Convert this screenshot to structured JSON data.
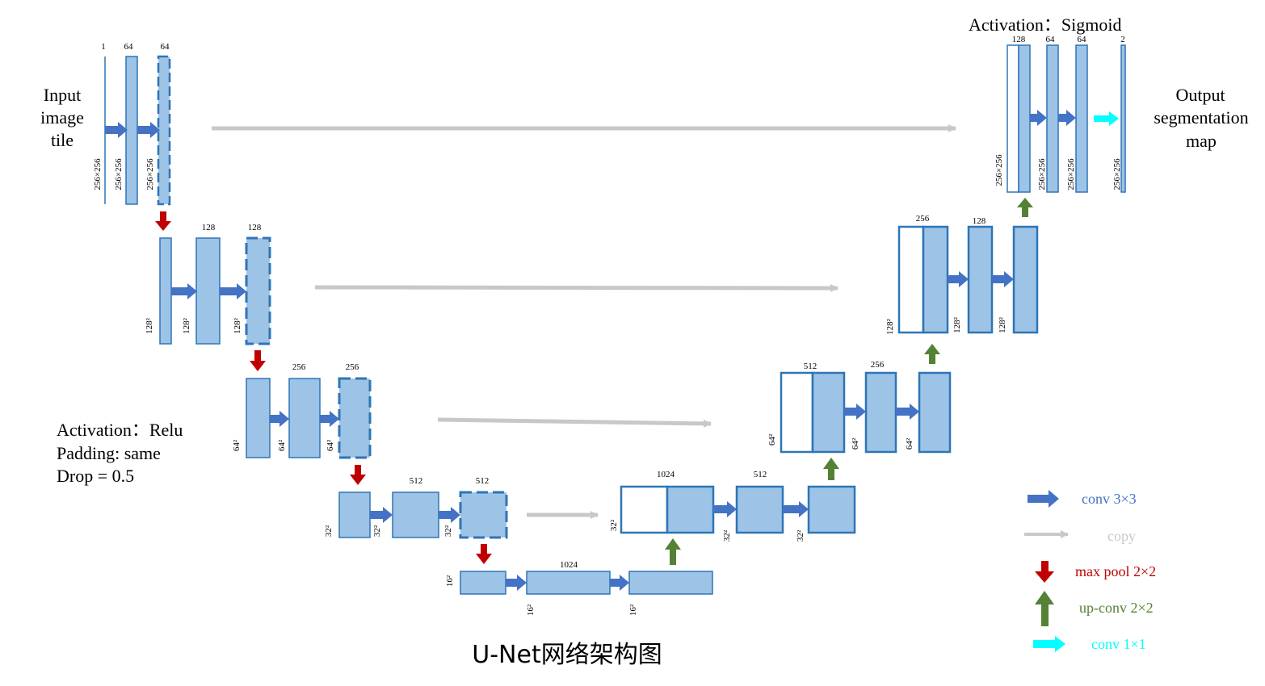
{
  "title": "U-Net网络架构图",
  "input_label": [
    "Input",
    "image",
    "tile"
  ],
  "output_label": [
    "Output",
    "segmentation",
    "map"
  ],
  "activation_top": "Activation：Sigmoid",
  "settings": [
    "Activation：Relu",
    "Padding: same",
    "Drop = 0.5"
  ],
  "colors": {
    "block_fill": "#9dc3e6",
    "block_border": "#2e75b6",
    "conv": "#4472c4",
    "copy": "#c8c8c8",
    "pool": "#c00000",
    "upconv": "#548235",
    "conv1x1": "#00ffff"
  },
  "channels": {
    "l1": [
      "1",
      "64",
      "64"
    ],
    "l2": [
      "128",
      "128"
    ],
    "l3": [
      "256",
      "256"
    ],
    "l4": [
      "512",
      "512"
    ],
    "bottom": "1024",
    "u4": [
      "1024",
      "512"
    ],
    "u3": [
      "512",
      "256"
    ],
    "u2": [
      "256",
      "128"
    ],
    "u1": [
      "128",
      "64",
      "64",
      "2"
    ]
  },
  "sizes": {
    "s256": "256×256",
    "s128": "128²",
    "s64": "64²",
    "s32": "32²",
    "s16": "16²"
  },
  "legend": [
    {
      "label": "conv 3×3",
      "icon": "blue-right-arrow-icon"
    },
    {
      "label": "copy",
      "icon": "gray-right-arrow-icon"
    },
    {
      "label": "max pool 2×2",
      "icon": "red-down-arrow-icon"
    },
    {
      "label": "up-conv 2×2",
      "icon": "green-up-arrow-icon"
    },
    {
      "label": "conv 1×1",
      "icon": "cyan-right-arrow-icon"
    }
  ]
}
